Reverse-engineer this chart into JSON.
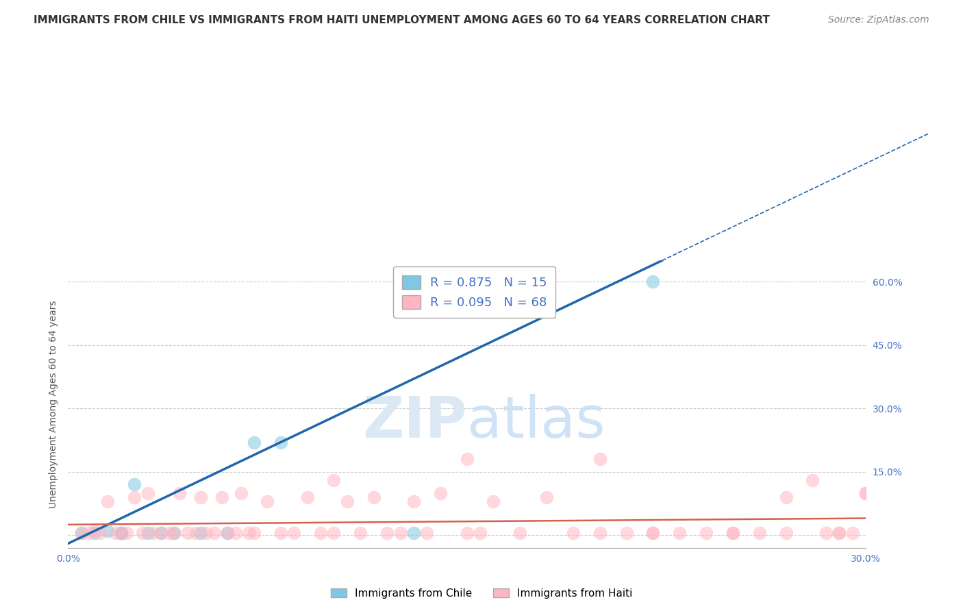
{
  "title": "IMMIGRANTS FROM CHILE VS IMMIGRANTS FROM HAITI UNEMPLOYMENT AMONG AGES 60 TO 64 YEARS CORRELATION CHART",
  "source": "Source: ZipAtlas.com",
  "ylabel": "Unemployment Among Ages 60 to 64 years",
  "xlim": [
    0.0,
    0.3
  ],
  "ylim": [
    -0.03,
    0.65
  ],
  "x_ticks": [
    0.0,
    0.05,
    0.1,
    0.15,
    0.2,
    0.25,
    0.3
  ],
  "x_tick_labels": [
    "0.0%",
    "",
    "",
    "",
    "",
    "",
    "30.0%"
  ],
  "y_ticks_right": [
    0.0,
    0.15,
    0.3,
    0.45,
    0.6
  ],
  "chile_color": "#7ec8e3",
  "haiti_color": "#ffb6c1",
  "chile_line_color": "#2166ac",
  "haiti_line_color": "#d6604d",
  "chile_R": 0.875,
  "chile_N": 15,
  "haiti_R": 0.095,
  "haiti_N": 68,
  "chile_points_x": [
    0.005,
    0.01,
    0.015,
    0.02,
    0.02,
    0.025,
    0.03,
    0.035,
    0.04,
    0.05,
    0.06,
    0.07,
    0.08,
    0.13,
    0.22
  ],
  "chile_points_y": [
    0.005,
    0.005,
    0.01,
    0.005,
    0.005,
    0.12,
    0.005,
    0.005,
    0.005,
    0.005,
    0.005,
    0.22,
    0.22,
    0.005,
    0.6
  ],
  "haiti_points_x": [
    0.005,
    0.008,
    0.01,
    0.012,
    0.015,
    0.018,
    0.02,
    0.022,
    0.025,
    0.028,
    0.03,
    0.032,
    0.035,
    0.038,
    0.04,
    0.042,
    0.045,
    0.048,
    0.05,
    0.052,
    0.055,
    0.058,
    0.06,
    0.063,
    0.065,
    0.068,
    0.07,
    0.075,
    0.08,
    0.085,
    0.09,
    0.095,
    0.1,
    0.105,
    0.11,
    0.115,
    0.12,
    0.125,
    0.13,
    0.135,
    0.14,
    0.15,
    0.155,
    0.16,
    0.17,
    0.18,
    0.19,
    0.2,
    0.21,
    0.22,
    0.23,
    0.24,
    0.25,
    0.26,
    0.27,
    0.28,
    0.285,
    0.29,
    0.295,
    0.3,
    0.1,
    0.15,
    0.2,
    0.22,
    0.25,
    0.27,
    0.29,
    0.3
  ],
  "haiti_points_y": [
    0.005,
    0.005,
    0.01,
    0.005,
    0.08,
    0.005,
    0.005,
    0.005,
    0.09,
    0.005,
    0.1,
    0.005,
    0.005,
    0.005,
    0.005,
    0.1,
    0.005,
    0.005,
    0.09,
    0.005,
    0.005,
    0.09,
    0.005,
    0.005,
    0.1,
    0.005,
    0.005,
    0.08,
    0.005,
    0.005,
    0.09,
    0.005,
    0.005,
    0.08,
    0.005,
    0.09,
    0.005,
    0.005,
    0.08,
    0.005,
    0.1,
    0.18,
    0.005,
    0.08,
    0.005,
    0.09,
    0.005,
    0.18,
    0.005,
    0.005,
    0.005,
    0.005,
    0.005,
    0.005,
    0.09,
    0.13,
    0.005,
    0.005,
    0.005,
    0.1,
    0.13,
    0.005,
    0.005,
    0.005,
    0.005,
    0.005,
    0.005,
    0.1
  ],
  "background_color": "#ffffff",
  "grid_color": "#cccccc",
  "title_fontsize": 11,
  "source_fontsize": 10,
  "label_fontsize": 10,
  "tick_fontsize": 10,
  "legend_fontsize": 13,
  "watermark_color": "#dce9f5",
  "watermark_fontsize": 60
}
